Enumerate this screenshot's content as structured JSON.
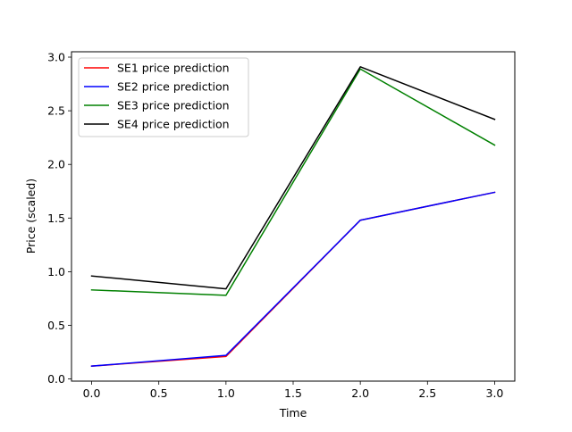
{
  "chart_data": {
    "type": "line",
    "title": "",
    "xlabel": "Time",
    "ylabel": "Price (scaled)",
    "x": [
      0,
      1,
      2,
      3
    ],
    "xlim": [
      -0.15,
      3.15
    ],
    "ylim": [
      -0.02,
      3.05
    ],
    "xticks": [
      0.0,
      0.5,
      1.0,
      1.5,
      2.0,
      2.5,
      3.0
    ],
    "xtick_labels": [
      "0.0",
      "0.5",
      "1.0",
      "1.5",
      "2.0",
      "2.5",
      "3.0"
    ],
    "yticks": [
      0.0,
      0.5,
      1.0,
      1.5,
      2.0,
      2.5,
      3.0
    ],
    "ytick_labels": [
      "0.0",
      "0.5",
      "1.0",
      "1.5",
      "2.0",
      "2.5",
      "3.0"
    ],
    "grid": false,
    "legend_position": "top-left",
    "series": [
      {
        "name": "SE1 price prediction",
        "color": "#ff0000",
        "values": [
          0.12,
          0.21,
          1.48,
          1.74
        ]
      },
      {
        "name": "SE2 price prediction",
        "color": "#0000ff",
        "values": [
          0.12,
          0.22,
          1.48,
          1.74
        ]
      },
      {
        "name": "SE3 price prediction",
        "color": "#008000",
        "values": [
          0.83,
          0.78,
          2.89,
          2.18
        ]
      },
      {
        "name": "SE4 price prediction",
        "color": "#000000",
        "values": [
          0.96,
          0.84,
          2.91,
          2.42
        ]
      }
    ]
  }
}
